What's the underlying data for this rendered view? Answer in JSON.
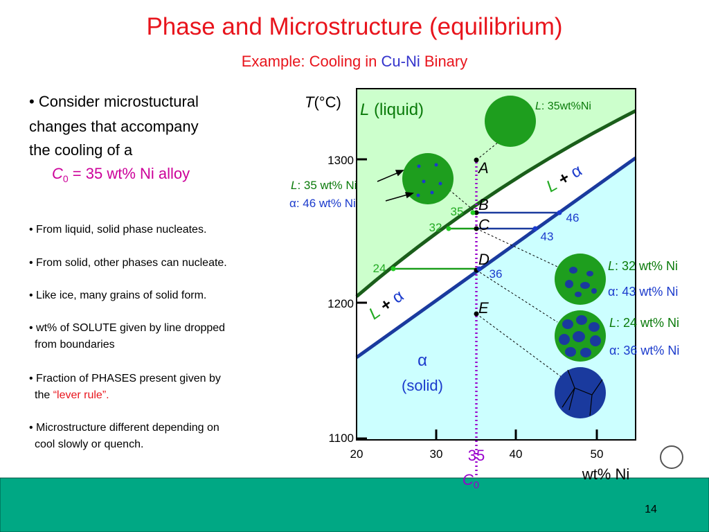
{
  "title": "Phase and Microstructure (equilibrium)",
  "subtitle": {
    "lead": "Example: Cooling in ",
    "system": "Cu-Ni",
    "tail": " Binary"
  },
  "intro": {
    "lines": [
      "• Consider microstuctural",
      "changes that accompany",
      "the cooling of a"
    ],
    "alloy": {
      "symbol": "C",
      "subscript": "0",
      "text": " = 35 wt% Ni alloy"
    }
  },
  "bullets": [
    {
      "lines": [
        "•  From liquid, solid phase nucleates."
      ]
    },
    {
      "lines": [
        "•  From solid, other phases can nucleate."
      ]
    },
    {
      "lines": [
        "•  Like ice, many grains of solid form."
      ]
    },
    {
      "lines": [
        "•  wt% of SOLUTE given by line dropped",
        "from boundaries"
      ]
    },
    {
      "lines": [
        "• Fraction of PHASES present given by",
        "the "
      ],
      "highlight": "“lever rule”."
    },
    {
      "lines": [
        "•  Microstructure different depending on",
        "cool slowly or quench."
      ]
    }
  ],
  "diagram": {
    "axis_label": {
      "symbol": "T",
      "unit": "(°C)"
    },
    "y_ticks": [
      "1300",
      "1200",
      "1100"
    ],
    "x_ticks": [
      "20",
      "30",
      "40",
      "50"
    ],
    "x_label": "wt% Ni",
    "alloy_marker": {
      "value": "35",
      "symbol": "C",
      "subscript": "0"
    },
    "regions": {
      "liquid": {
        "symbol": "L",
        "text": " (liquid)"
      },
      "two_phase_upper": {
        "l": "L",
        "plus": " + ",
        "alpha": "α"
      },
      "two_phase_lower": {
        "l": "L",
        "plus": " + ",
        "alpha": "α"
      },
      "solid": {
        "alpha": "α",
        "text": "(solid)"
      }
    },
    "points": [
      "A",
      "B",
      "C",
      "D",
      "E"
    ],
    "compositions": {
      "liquid": [
        "35",
        "32",
        "24"
      ],
      "solid": [
        "46",
        "43",
        "36"
      ]
    },
    "annotations": [
      {
        "symbol": "L",
        "text": ": 35wt%Ni"
      },
      {
        "symbol": "L",
        "text": ": 35 wt% Ni"
      },
      {
        "symbol": "α",
        "text": ": 46 wt% Ni"
      },
      {
        "symbol": "L",
        "text": ": 32 wt% Ni"
      },
      {
        "symbol": "α",
        "text": ": 43 wt% Ni"
      },
      {
        "symbol": "L",
        "text": ": 24 wt% Ni"
      },
      {
        "symbol": "α",
        "text": ": 36 wt% Ni"
      }
    ]
  },
  "page_number": "14"
}
